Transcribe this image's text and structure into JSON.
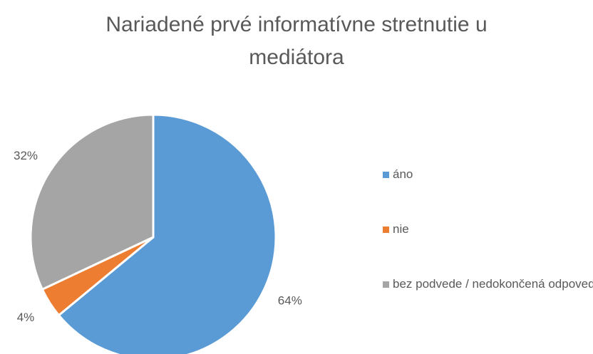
{
  "chart_data": {
    "type": "pie",
    "title": "Nariadené prvé informatívne stretnutie u mediátora",
    "categories": [
      "áno",
      "nie",
      "bez podvede / nedokončená odpoveď"
    ],
    "values": [
      64,
      4,
      32
    ],
    "value_labels": [
      "64%",
      "4%",
      "32%"
    ],
    "colors": [
      "#5b9bd5",
      "#ed7d31",
      "#a5a5a5"
    ],
    "legend": "right"
  }
}
